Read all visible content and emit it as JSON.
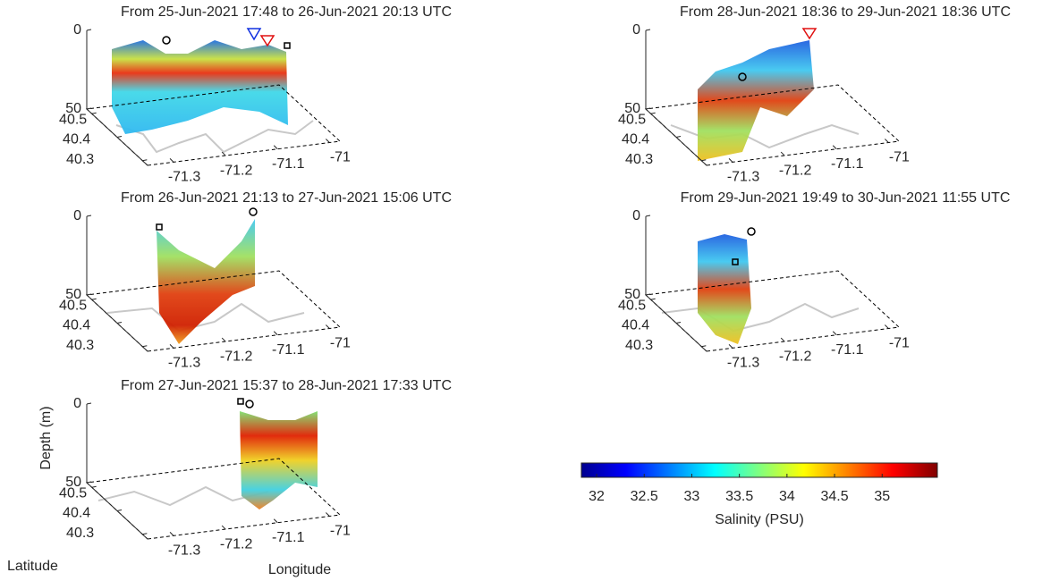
{
  "chart_data": [
    {
      "type": "curtain3d",
      "title": "From 25-Jun-2021 17:48 to 26-Jun-2021 20:13 UTC",
      "xlim": [
        -71.35,
        -70.98
      ],
      "ylim": [
        40.28,
        40.52
      ],
      "zlim": [
        0,
        50
      ],
      "xticks": [
        -71.3,
        -71.2,
        -71.1,
        -71
      ],
      "yticks": [
        40.3,
        40.4,
        40.5
      ],
      "zticks": [
        0,
        50
      ]
    },
    {
      "type": "curtain3d",
      "title": "From 26-Jun-2021 21:13 to 27-Jun-2021 15:06 UTC",
      "xlim": [
        -71.35,
        -70.98
      ],
      "ylim": [
        40.28,
        40.52
      ],
      "zlim": [
        0,
        50
      ],
      "xticks": [
        -71.3,
        -71.2,
        -71.1,
        -71
      ],
      "yticks": [
        40.3,
        40.4,
        40.5
      ],
      "zticks": [
        0,
        50
      ]
    },
    {
      "type": "curtain3d",
      "title": "From 27-Jun-2021 15:37 to 28-Jun-2021 17:33 UTC",
      "xlim": [
        -71.35,
        -70.98
      ],
      "ylim": [
        40.28,
        40.52
      ],
      "zlim": [
        0,
        50
      ],
      "xticks": [
        -71.3,
        -71.2,
        -71.1,
        -71
      ],
      "yticks": [
        40.3,
        40.4,
        40.5
      ],
      "zticks": [
        0,
        50
      ],
      "xlabel": "Longitude",
      "ylabel": "Latitude",
      "zlabel": "Depth (m)"
    },
    {
      "type": "curtain3d",
      "title": "From 28-Jun-2021 18:36 to 29-Jun-2021 18:36 UTC",
      "xlim": [
        -71.35,
        -70.98
      ],
      "ylim": [
        40.28,
        40.52
      ],
      "zlim": [
        0,
        50
      ],
      "xticks": [
        -71.3,
        -71.2,
        -71.1,
        -71
      ],
      "yticks": [
        40.3,
        40.4,
        40.5
      ],
      "zticks": [
        0,
        50
      ]
    },
    {
      "type": "curtain3d",
      "title": "From 29-Jun-2021 19:49 to 30-Jun-2021 11:55 UTC",
      "xlim": [
        -71.35,
        -70.98
      ],
      "ylim": [
        40.28,
        40.52
      ],
      "zlim": [
        0,
        50
      ],
      "xticks": [
        -71.3,
        -71.2,
        -71.1,
        -71
      ],
      "yticks": [
        40.3,
        40.4,
        40.5
      ],
      "zticks": [
        0,
        50
      ]
    },
    {
      "type": "colorbar",
      "label": "Salinity (PSU)",
      "clim": [
        31.84,
        35.58
      ],
      "ticks": [
        32,
        32.5,
        33,
        33.5,
        34,
        34.5,
        35
      ],
      "colormap": "jet"
    }
  ]
}
